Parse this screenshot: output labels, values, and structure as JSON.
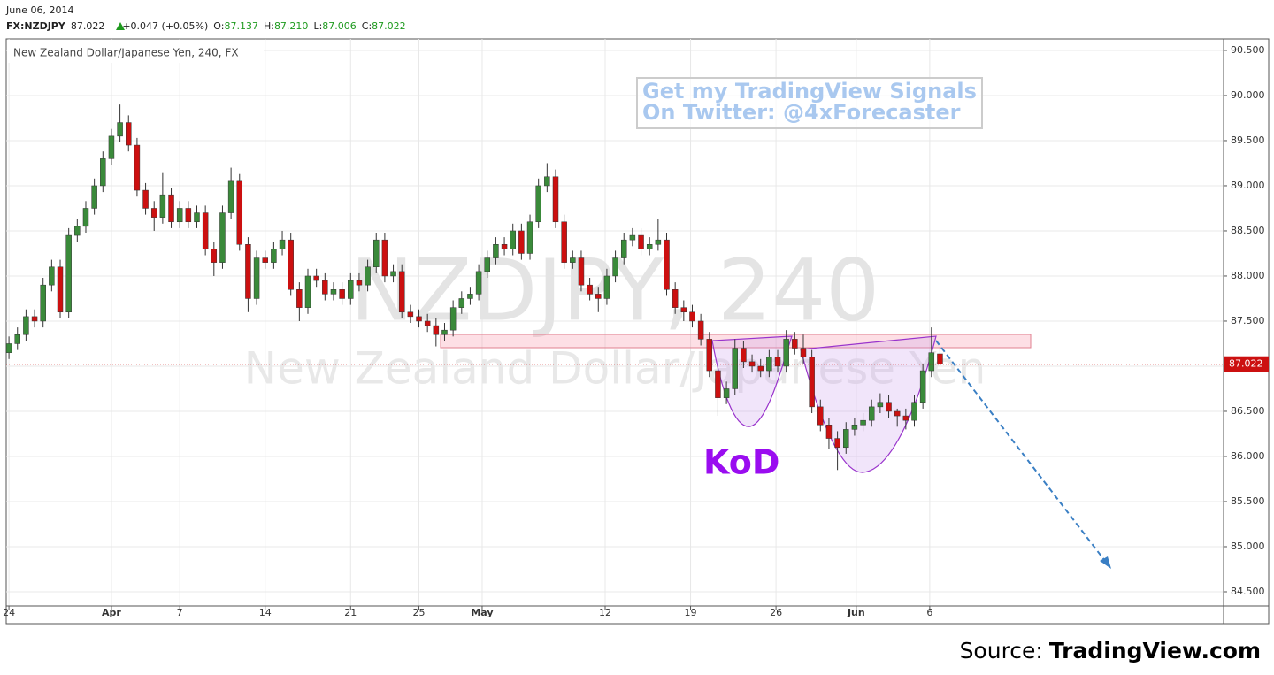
{
  "header": {
    "date": "June 06, 2014",
    "symbol": "FX:NZDJPY",
    "last": "87.022",
    "change": "+0.047 (+0.05%)",
    "ohlc": [
      {
        "label": "O:",
        "value": "87.137"
      },
      {
        "label": "H:",
        "value": "87.210"
      },
      {
        "label": "L:",
        "value": "87.006"
      },
      {
        "label": "C:",
        "value": "87.022"
      }
    ]
  },
  "chart_data": {
    "type": "candlestick",
    "subtitle": "New Zealand Dollar/Japanese Yen, 240, FX",
    "watermark": [
      "NZDJPY, 240",
      "New Zealand Dollar/Japanese Yen"
    ],
    "promo": [
      "Get my TradingView Signals",
      "On Twitter: @4xForecaster"
    ],
    "annotation": "KoD",
    "up_color": "#3a8a3a",
    "down_color": "#cc1010",
    "wick_color": "#333333",
    "grid": true,
    "xlim": [
      -0.16,
      71.1
    ],
    "xticks": [
      {
        "value": 0,
        "label": "24"
      },
      {
        "value": 6,
        "label": "Apr"
      },
      {
        "value": 10,
        "label": "7"
      },
      {
        "value": 15,
        "label": "14"
      },
      {
        "value": 20,
        "label": "21"
      },
      {
        "value": 24,
        "label": "25"
      },
      {
        "value": 27.7,
        "label": "May"
      },
      {
        "value": 34.9,
        "label": "12"
      },
      {
        "value": 39.9,
        "label": "19"
      },
      {
        "value": 44.9,
        "label": "26"
      },
      {
        "value": 49.6,
        "label": "Jun"
      },
      {
        "value": 53.9,
        "label": "6"
      }
    ],
    "ylim": [
      84.343,
      90.627
    ],
    "yticks": [
      {
        "value": 84.5,
        "label": "84.500"
      },
      {
        "value": 85,
        "label": "85.000"
      },
      {
        "value": 85.5,
        "label": "85.500"
      },
      {
        "value": 86,
        "label": "86.000"
      },
      {
        "value": 86.5,
        "label": "86.500"
      },
      {
        "value": 87,
        "label": "87.000"
      },
      {
        "value": 87.5,
        "label": "87.500"
      },
      {
        "value": 88,
        "label": "88.000"
      },
      {
        "value": 88.5,
        "label": "88.500"
      },
      {
        "value": 89,
        "label": "89.000"
      },
      {
        "value": 89.5,
        "label": "89.500"
      },
      {
        "value": 90,
        "label": "90.000"
      },
      {
        "value": 90.5,
        "label": "90.500"
      }
    ],
    "x": [
      0,
      0.5,
      1,
      1.5,
      2,
      2.5,
      3,
      3.5,
      4,
      4.5,
      5,
      5.5,
      6,
      6.5,
      7,
      7.5,
      8,
      8.5,
      9,
      9.5,
      10,
      10.5,
      11,
      11.5,
      12,
      12.5,
      13,
      13.5,
      14,
      14.5,
      15,
      15.5,
      16,
      16.5,
      17,
      17.5,
      18,
      18.5,
      19,
      19.5,
      20,
      20.5,
      21,
      21.5,
      22,
      22.5,
      23,
      23.5,
      24,
      24.5,
      25,
      25.5,
      26,
      26.5,
      27,
      27.5,
      28,
      28.5,
      29,
      29.5,
      30,
      30.5,
      31,
      31.5,
      32,
      32.5,
      33,
      33.5,
      34,
      34.5,
      35,
      35.5,
      36,
      36.5,
      37,
      37.5,
      38,
      38.5,
      39,
      39.5,
      40,
      40.5,
      41,
      41.5,
      42,
      42.5,
      43,
      43.5,
      44,
      44.5,
      45,
      45.5,
      46,
      46.5,
      47,
      47.5,
      48,
      48.5,
      49,
      49.5,
      50,
      50.5,
      51,
      51.5,
      52,
      52.5,
      53,
      53.5,
      54,
      54.5
    ],
    "open": [
      87.15,
      87.25,
      87.35,
      87.55,
      87.5,
      87.9,
      88.1,
      87.6,
      88.45,
      88.55,
      88.75,
      89.0,
      89.3,
      89.55,
      89.7,
      89.45,
      88.95,
      88.75,
      88.65,
      88.9,
      88.6,
      88.75,
      88.6,
      88.7,
      88.3,
      88.15,
      88.7,
      89.05,
      88.35,
      87.75,
      88.2,
      88.15,
      88.3,
      88.4,
      87.85,
      87.65,
      88.0,
      87.95,
      87.8,
      87.85,
      87.75,
      87.95,
      87.9,
      88.1,
      88.4,
      88.0,
      88.05,
      87.6,
      87.55,
      87.5,
      87.45,
      87.35,
      87.4,
      87.65,
      87.75,
      87.8,
      88.05,
      88.2,
      88.35,
      88.3,
      88.5,
      88.25,
      88.6,
      89.0,
      89.1,
      88.6,
      88.15,
      88.2,
      87.9,
      87.8,
      87.75,
      88.0,
      88.2,
      88.4,
      88.45,
      88.3,
      88.35,
      88.4,
      87.85,
      87.65,
      87.6,
      87.5,
      87.3,
      86.95,
      86.65,
      86.75,
      87.2,
      87.05,
      87.0,
      86.95,
      87.1,
      87.0,
      87.3,
      87.2,
      87.1,
      86.55,
      86.35,
      86.2,
      86.1,
      86.3,
      86.35,
      86.4,
      86.55,
      86.6,
      86.5,
      86.45,
      86.4,
      86.6,
      86.95,
      87.137
    ],
    "high": [
      87.33,
      87.43,
      87.63,
      87.63,
      87.98,
      88.18,
      88.18,
      88.53,
      88.63,
      88.83,
      89.08,
      89.38,
      89.63,
      89.9,
      89.78,
      89.53,
      89.03,
      88.83,
      89.15,
      88.98,
      88.83,
      88.83,
      88.78,
      88.78,
      88.38,
      88.78,
      89.2,
      89.13,
      88.43,
      88.28,
      88.28,
      88.38,
      88.5,
      88.48,
      87.93,
      88.08,
      88.08,
      88.03,
      87.93,
      87.93,
      88.03,
      88.03,
      88.18,
      88.48,
      88.48,
      88.13,
      88.13,
      87.68,
      87.63,
      87.58,
      87.53,
      87.48,
      87.73,
      87.83,
      87.88,
      88.13,
      88.28,
      88.43,
      88.43,
      88.58,
      88.58,
      88.68,
      89.08,
      89.25,
      89.18,
      88.68,
      88.28,
      88.28,
      87.98,
      87.88,
      88.08,
      88.28,
      88.48,
      88.53,
      88.53,
      88.43,
      88.63,
      88.48,
      87.93,
      87.73,
      87.68,
      87.58,
      87.38,
      87.03,
      86.83,
      87.3,
      87.28,
      87.13,
      87.08,
      87.18,
      87.18,
      87.4,
      87.38,
      87.35,
      87.18,
      86.63,
      86.43,
      86.28,
      86.38,
      86.43,
      86.48,
      86.63,
      86.7,
      86.68,
      86.53,
      86.53,
      86.68,
      87.03,
      87.43,
      87.21
    ],
    "low": [
      87.08,
      87.18,
      87.28,
      87.43,
      87.43,
      87.83,
      87.53,
      87.53,
      88.38,
      88.48,
      88.68,
      88.93,
      89.23,
      89.48,
      89.38,
      88.88,
      88.68,
      88.5,
      88.58,
      88.53,
      88.53,
      88.53,
      88.53,
      88.23,
      88.0,
      88.08,
      88.63,
      88.28,
      87.6,
      87.68,
      88.08,
      88.08,
      88.23,
      87.78,
      87.5,
      87.58,
      87.88,
      87.73,
      87.73,
      87.68,
      87.68,
      87.83,
      87.83,
      88.03,
      87.93,
      87.93,
      87.53,
      87.48,
      87.43,
      87.38,
      87.22,
      87.28,
      87.33,
      87.58,
      87.68,
      87.73,
      87.98,
      88.13,
      88.23,
      88.23,
      88.18,
      88.18,
      88.53,
      88.93,
      88.53,
      88.08,
      88.08,
      87.83,
      87.73,
      87.6,
      87.68,
      87.93,
      88.13,
      88.33,
      88.23,
      88.23,
      88.28,
      87.78,
      87.58,
      87.5,
      87.43,
      87.23,
      86.88,
      86.45,
      86.58,
      86.68,
      86.98,
      86.93,
      86.88,
      86.88,
      86.93,
      86.93,
      87.13,
      87.03,
      86.48,
      86.28,
      86.08,
      85.85,
      86.03,
      86.23,
      86.28,
      86.33,
      86.48,
      86.43,
      86.33,
      86.3,
      86.33,
      86.53,
      86.88,
      87.006
    ],
    "close": [
      87.25,
      87.35,
      87.55,
      87.5,
      87.9,
      88.1,
      87.6,
      88.45,
      88.55,
      88.75,
      89.0,
      89.3,
      89.55,
      89.7,
      89.45,
      88.95,
      88.75,
      88.65,
      88.9,
      88.6,
      88.75,
      88.6,
      88.7,
      88.3,
      88.15,
      88.7,
      89.05,
      88.35,
      87.75,
      88.2,
      88.15,
      88.3,
      88.4,
      87.85,
      87.65,
      88.0,
      87.95,
      87.8,
      87.85,
      87.75,
      87.95,
      87.9,
      88.1,
      88.4,
      88.0,
      88.05,
      87.6,
      87.55,
      87.5,
      87.45,
      87.35,
      87.4,
      87.65,
      87.75,
      87.8,
      88.05,
      88.2,
      88.35,
      88.3,
      88.5,
      88.25,
      88.6,
      89.0,
      89.1,
      88.6,
      88.15,
      88.2,
      87.9,
      87.8,
      87.75,
      88.0,
      88.2,
      88.4,
      88.45,
      88.3,
      88.35,
      88.4,
      87.85,
      87.65,
      87.6,
      87.5,
      87.3,
      86.95,
      86.65,
      86.75,
      87.2,
      87.05,
      87.0,
      86.95,
      87.1,
      87.0,
      87.3,
      87.2,
      87.1,
      86.55,
      86.35,
      86.2,
      86.1,
      86.3,
      86.35,
      86.4,
      86.55,
      86.6,
      86.5,
      86.45,
      86.4,
      86.6,
      86.95,
      87.15,
      87.022
    ]
  },
  "source": {
    "prefix": "Source:",
    "site": "TradingView.com"
  }
}
